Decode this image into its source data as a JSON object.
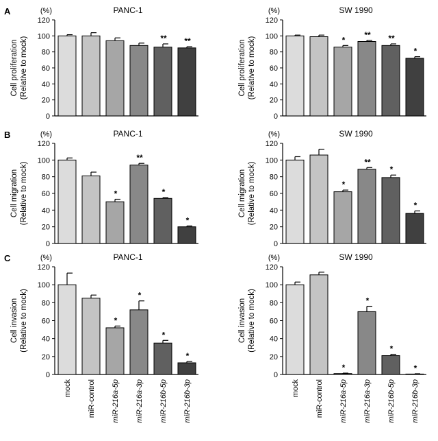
{
  "chart_data": [
    {
      "id": "A-left",
      "type": "bar",
      "panel": "A",
      "title": "PANC-1",
      "unit": "(%)",
      "ylabel": [
        "Cell proliferation",
        "(Relative to mock)"
      ],
      "ylim": [
        0,
        120
      ],
      "yticks": [
        0,
        20,
        40,
        60,
        80,
        100,
        120
      ],
      "categories": [
        "mock",
        "miR-control",
        "miR-216a-5p",
        "miR-216a-3p",
        "miR-216b-5p",
        "miR-216b-3p"
      ],
      "values": [
        100,
        100,
        94,
        88,
        86,
        85
      ],
      "errors": [
        1.5,
        4,
        3.5,
        3,
        4,
        1.5
      ],
      "annotations": [
        "",
        "",
        "",
        "",
        "**",
        "**"
      ],
      "colors": [
        "#dcdcdc",
        "#c4c4c4",
        "#a6a6a6",
        "#888888",
        "#606060",
        "#404040"
      ]
    },
    {
      "id": "A-right",
      "type": "bar",
      "panel": "",
      "title": "SW 1990",
      "unit": "(%)",
      "ylabel": [
        "Cell proliferation",
        "(Relative to mock)"
      ],
      "ylim": [
        0,
        120
      ],
      "yticks": [
        0,
        20,
        40,
        60,
        80,
        100,
        120
      ],
      "categories": [
        "mock",
        "miR-control",
        "miR-216a-5p",
        "miR-216a-3p",
        "miR-216b-5p",
        "miR-216b-3p"
      ],
      "values": [
        100,
        99,
        86,
        93,
        88,
        72
      ],
      "errors": [
        1,
        2,
        2,
        1.5,
        2,
        2
      ],
      "annotations": [
        "",
        "",
        "*",
        "**",
        "**",
        "*"
      ],
      "colors": [
        "#dcdcdc",
        "#c4c4c4",
        "#a6a6a6",
        "#888888",
        "#606060",
        "#404040"
      ]
    },
    {
      "id": "B-left",
      "type": "bar",
      "panel": "B",
      "title": "PANC-1",
      "unit": "(%)",
      "ylabel": [
        "Cell migration",
        "(Relative to mock)"
      ],
      "ylim": [
        0,
        120
      ],
      "yticks": [
        0,
        20,
        40,
        60,
        80,
        100,
        120
      ],
      "categories": [
        "mock",
        "miR-control",
        "miR-216a-5p",
        "miR-216a-3p",
        "miR-216b-5p",
        "miR-216b-3p"
      ],
      "values": [
        100,
        81,
        50,
        94,
        54,
        20
      ],
      "errors": [
        2.5,
        4.5,
        3,
        2,
        1,
        1
      ],
      "annotations": [
        "",
        "",
        "*",
        "**",
        "*",
        "*"
      ],
      "colors": [
        "#dcdcdc",
        "#c4c4c4",
        "#a6a6a6",
        "#888888",
        "#606060",
        "#404040"
      ]
    },
    {
      "id": "B-right",
      "type": "bar",
      "panel": "",
      "title": "SW 1990",
      "unit": "(%)",
      "ylabel": [
        "Cell migration",
        "(Relative to mock)"
      ],
      "ylim": [
        0,
        120
      ],
      "yticks": [
        0,
        20,
        40,
        60,
        80,
        100,
        120
      ],
      "categories": [
        "mock",
        "miR-control",
        "miR-216a-5p",
        "miR-216a-3p",
        "miR-216b-5p",
        "miR-216b-3p"
      ],
      "values": [
        100,
        106,
        62,
        89,
        79,
        36
      ],
      "errors": [
        4,
        7,
        2,
        2,
        3,
        3
      ],
      "annotations": [
        "",
        "",
        "*",
        "**",
        "*",
        "*"
      ],
      "colors": [
        "#dcdcdc",
        "#c4c4c4",
        "#a6a6a6",
        "#888888",
        "#606060",
        "#404040"
      ]
    },
    {
      "id": "C-left",
      "type": "bar",
      "panel": "C",
      "title": "PANC-1",
      "unit": "(%)",
      "ylabel": [
        "Cell invasion",
        "(Relative to mock)"
      ],
      "ylim": [
        0,
        120
      ],
      "yticks": [
        0,
        20,
        40,
        60,
        80,
        100,
        120
      ],
      "categories": [
        "mock",
        "miR-control",
        "miR-216a-5p",
        "miR-216a-3p",
        "miR-216b-5p",
        "miR-216b-3p"
      ],
      "values": [
        100,
        85,
        52,
        72,
        35,
        13
      ],
      "errors": [
        13,
        3.5,
        2,
        10,
        3,
        1.5
      ],
      "annotations": [
        "",
        "",
        "*",
        "*",
        "*",
        "*"
      ],
      "colors": [
        "#dcdcdc",
        "#c4c4c4",
        "#a6a6a6",
        "#888888",
        "#606060",
        "#404040"
      ]
    },
    {
      "id": "C-right",
      "type": "bar",
      "panel": "",
      "title": "SW 1990",
      "unit": "(%)",
      "ylabel": [
        "Cell invasion",
        "(Relative to mock)"
      ],
      "ylim": [
        0,
        120
      ],
      "yticks": [
        0,
        20,
        40,
        60,
        80,
        100,
        120
      ],
      "categories": [
        "mock",
        "miR-control",
        "miR-216a-5p",
        "miR-216a-3p",
        "miR-216b-5p",
        "miR-216b-3p"
      ],
      "values": [
        100,
        111,
        1,
        70,
        21,
        0.5
      ],
      "errors": [
        3,
        3,
        0.5,
        6,
        1.5,
        0.3
      ],
      "annotations": [
        "",
        "",
        "*",
        "*",
        "*",
        "*"
      ],
      "colors": [
        "#dcdcdc",
        "#c4c4c4",
        "#a6a6a6",
        "#888888",
        "#606060",
        "#404040"
      ]
    }
  ]
}
